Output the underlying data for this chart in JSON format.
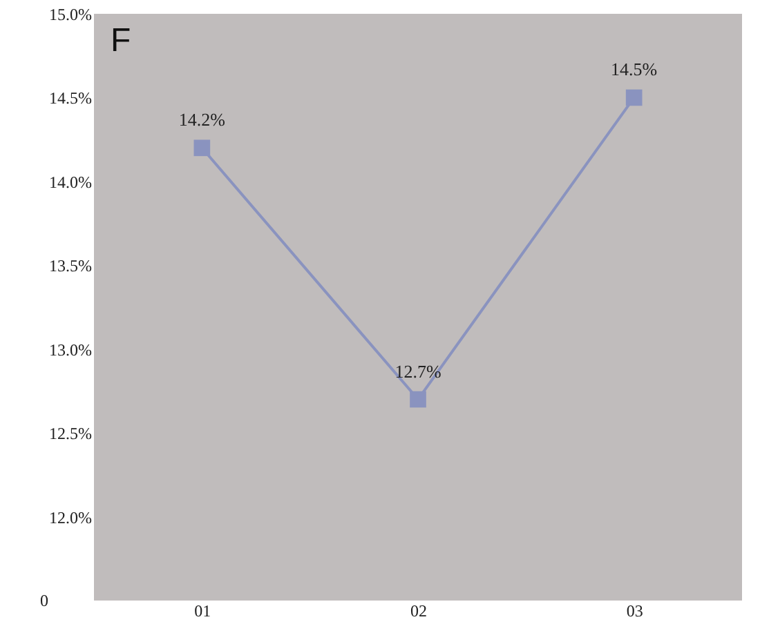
{
  "chart_data": {
    "type": "line",
    "categories": [
      "01",
      "02",
      "03"
    ],
    "series": [
      {
        "color": "#8a93bf",
        "values": [
          14.2,
          12.7,
          14.5
        ],
        "value_labels": [
          "14.2%",
          "12.7%",
          "14.5%"
        ]
      }
    ],
    "ylim": [
      11.5,
      15.0
    ],
    "yticks": [
      {
        "value": 11.5,
        "label": null
      },
      {
        "value": 12.0,
        "label": "12.0%"
      },
      {
        "value": 12.5,
        "label": "12.5%"
      },
      {
        "value": 13.0,
        "label": "13.0%"
      },
      {
        "value": 13.5,
        "label": "13.5%"
      },
      {
        "value": 14.0,
        "label": "14.0%"
      },
      {
        "value": 14.5,
        "label": "14.5%"
      },
      {
        "value": 15.0,
        "label": "15.0%"
      }
    ],
    "grid": false,
    "marker": "square",
    "line_style": "solid",
    "annotations": [
      "F",
      "0"
    ]
  }
}
